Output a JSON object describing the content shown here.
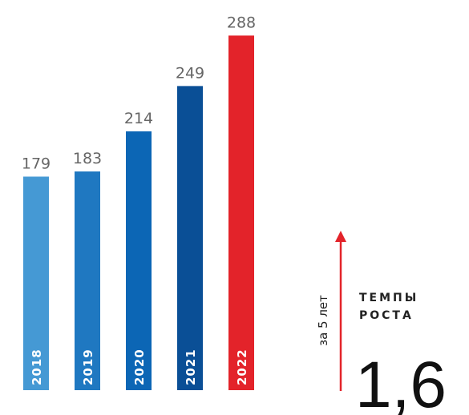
{
  "chart_data": {
    "type": "bar",
    "categories": [
      "2018",
      "2019",
      "2020",
      "2021",
      "2022"
    ],
    "values": [
      179,
      183,
      214,
      249,
      288
    ],
    "colors": [
      "#4599d4",
      "#1f78c1",
      "#0c66b5",
      "#0a4f96",
      "#e3232a"
    ],
    "ylim": [
      14,
      300
    ],
    "annotation": {
      "period": "за 5 лет",
      "title_lines": [
        "ТЕМПЫ",
        "РОСТА"
      ],
      "growth": "1,6",
      "arrow_color": "#e3232a"
    }
  }
}
